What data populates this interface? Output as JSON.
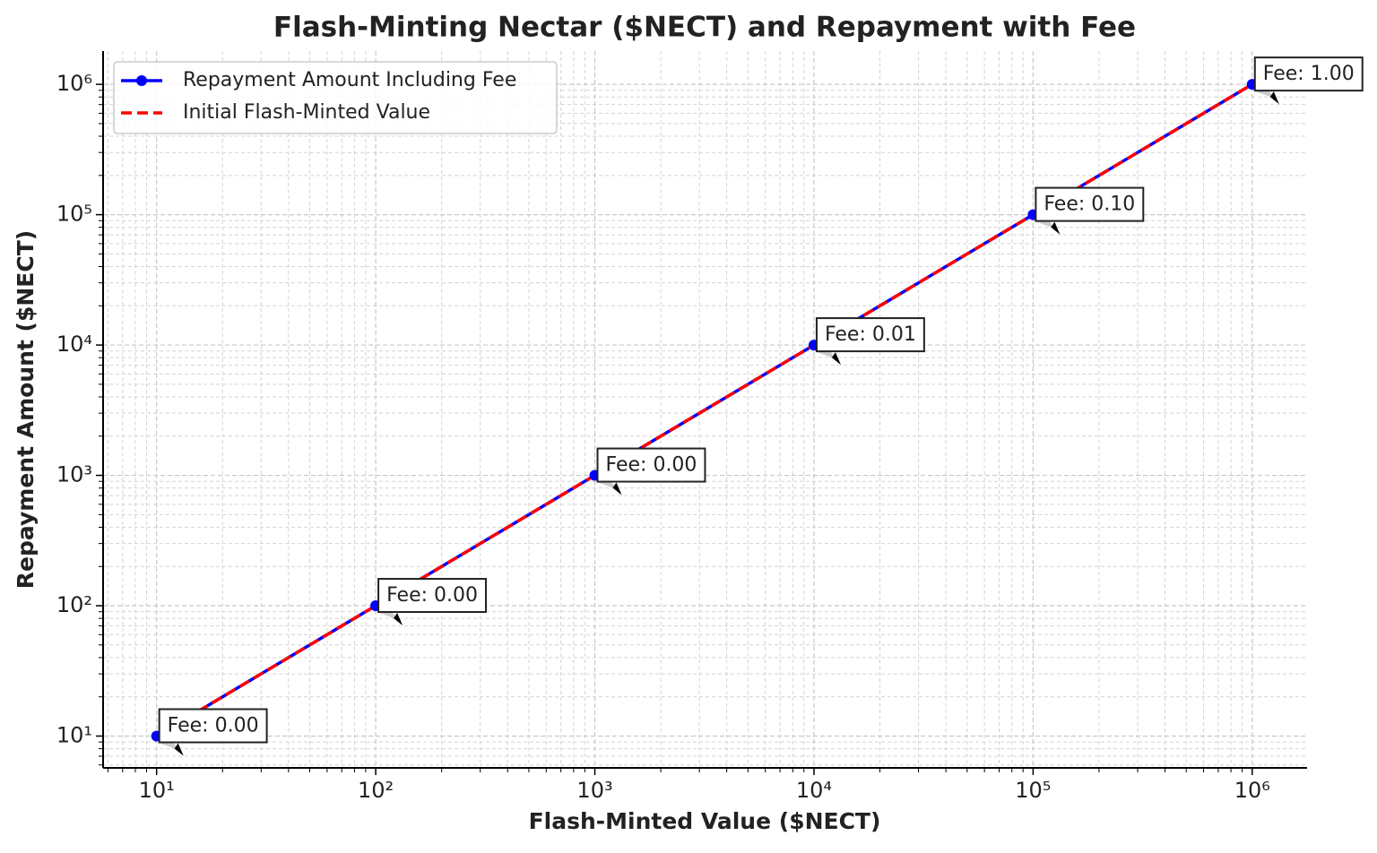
{
  "chart_data": {
    "type": "line",
    "title": "Flash-Minting Nectar ($NECT) and Repayment with Fee",
    "xlabel": "Flash-Minted Value ($NECT)",
    "ylabel": "Repayment Amount ($NECT)",
    "x": [
      10,
      100,
      1000,
      10000,
      100000,
      1000000
    ],
    "series": [
      {
        "name": "Repayment Amount Including Fee",
        "color": "#0000ff",
        "marker": "circle",
        "dash": "solid",
        "values": [
          10.00001,
          100.0001,
          1000.001,
          10000.01,
          100000.1,
          1000001
        ]
      },
      {
        "name": "Initial Flash-Minted Value",
        "color": "#ff0000",
        "dash": "dashed",
        "values": [
          10,
          100,
          1000,
          10000,
          100000,
          1000000
        ]
      }
    ],
    "annotations": [
      {
        "text": "Fee: 0.00",
        "index": 0
      },
      {
        "text": "Fee: 0.00",
        "index": 1
      },
      {
        "text": "Fee: 0.00",
        "index": 2
      },
      {
        "text": "Fee: 0.01",
        "index": 3
      },
      {
        "text": "Fee: 0.10",
        "index": 4
      },
      {
        "text": "Fee: 1.00",
        "index": 5
      }
    ],
    "xscale": "log",
    "yscale": "log",
    "xlim": [
      5.7,
      1780000
    ],
    "ylim": [
      5.7,
      1800000
    ],
    "xticks": [
      {
        "value": 10,
        "label": "10¹"
      },
      {
        "value": 100,
        "label": "10²"
      },
      {
        "value": 1000,
        "label": "10³"
      },
      {
        "value": 10000,
        "label": "10⁴"
      },
      {
        "value": 100000,
        "label": "10⁵"
      },
      {
        "value": 1000000,
        "label": "10⁶"
      }
    ],
    "yticks": [
      {
        "value": 10,
        "label": "10¹"
      },
      {
        "value": 100,
        "label": "10²"
      },
      {
        "value": 1000,
        "label": "10³"
      },
      {
        "value": 10000,
        "label": "10⁴"
      },
      {
        "value": 100000,
        "label": "10⁵"
      },
      {
        "value": 1000000,
        "label": "10⁶"
      }
    ],
    "xminorticks": [
      6,
      7,
      8,
      9,
      20,
      30,
      40,
      50,
      60,
      70,
      80,
      90,
      200,
      300,
      400,
      500,
      600,
      700,
      800,
      900,
      2000,
      3000,
      4000,
      5000,
      6000,
      7000,
      8000,
      9000,
      20000,
      30000,
      40000,
      50000,
      60000,
      70000,
      80000,
      90000,
      200000,
      300000,
      400000,
      500000,
      600000,
      700000,
      800000,
      900000
    ],
    "yminorticks": [
      6,
      7,
      8,
      9,
      20,
      30,
      40,
      50,
      60,
      70,
      80,
      90,
      200,
      300,
      400,
      500,
      600,
      700,
      800,
      900,
      2000,
      3000,
      4000,
      5000,
      6000,
      7000,
      8000,
      9000,
      20000,
      30000,
      40000,
      50000,
      60000,
      70000,
      80000,
      90000,
      200000,
      300000,
      400000,
      500000,
      600000,
      700000,
      800000,
      900000
    ],
    "grid": true,
    "legend": "upper-left"
  }
}
